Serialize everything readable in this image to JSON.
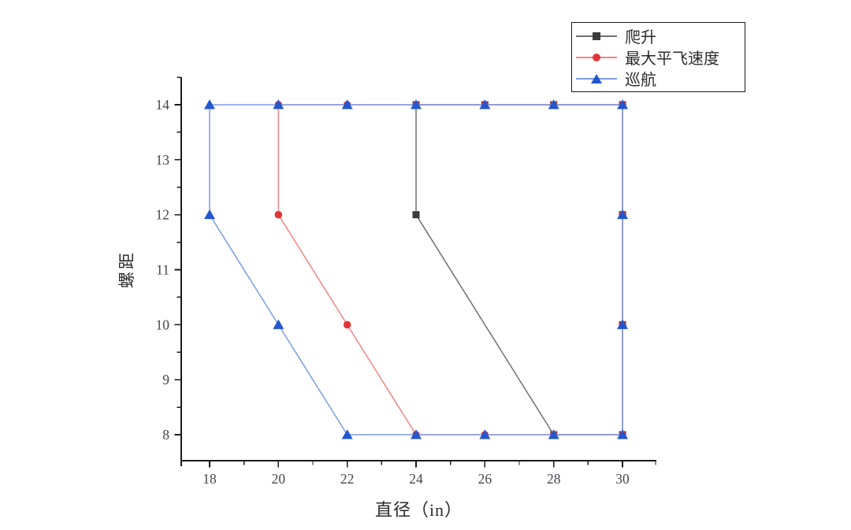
{
  "figure": {
    "background": "#ffffff",
    "axis_color": "#1a1a1a",
    "tick_label_color": "#44444e",
    "legend_border_color": "#1a1a1a"
  },
  "chart_data": {
    "type": "line",
    "title": "",
    "xlabel": "直径（in）",
    "ylabel": "螺距",
    "xticks": [
      18,
      20,
      22,
      24,
      26,
      28,
      30
    ],
    "xminor_ticks": [
      19,
      21,
      23,
      25,
      27,
      29,
      31
    ],
    "yticks": [
      8,
      9,
      10,
      11,
      12,
      13,
      14
    ],
    "yminor_ticks": [
      8.5,
      9.5,
      10.5,
      11.5,
      12.5,
      13.5,
      14.5
    ],
    "xlim": [
      17.2,
      31.0
    ],
    "ylim": [
      7.5,
      14.5
    ],
    "grid": false,
    "legend_position": "top-right",
    "series": [
      {
        "name": "爬升",
        "marker": "square",
        "color": "#3b3b3b",
        "line_color": "#707070",
        "points": [
          [
            24,
            14
          ],
          [
            26,
            14
          ],
          [
            28,
            14
          ],
          [
            30,
            14
          ],
          [
            30,
            12
          ],
          [
            30,
            10
          ],
          [
            30,
            8
          ],
          [
            28,
            8
          ],
          [
            24,
            12
          ],
          [
            24,
            14
          ]
        ]
      },
      {
        "name": "最大平飞速度",
        "marker": "circle",
        "color": "#e13638",
        "line_color": "#f08486",
        "points": [
          [
            20,
            14
          ],
          [
            22,
            14
          ],
          [
            24,
            14
          ],
          [
            26,
            14
          ],
          [
            28,
            14
          ],
          [
            30,
            14
          ],
          [
            30,
            12
          ],
          [
            30,
            10
          ],
          [
            30,
            8
          ],
          [
            28,
            8
          ],
          [
            26,
            8
          ],
          [
            24,
            8
          ],
          [
            22,
            10
          ],
          [
            20,
            12
          ],
          [
            20,
            14
          ]
        ]
      },
      {
        "name": "巡航",
        "marker": "triangle",
        "color": "#2457cd",
        "line_color": "#7d9ce6",
        "points": [
          [
            18,
            14
          ],
          [
            20,
            14
          ],
          [
            22,
            14
          ],
          [
            24,
            14
          ],
          [
            26,
            14
          ],
          [
            28,
            14
          ],
          [
            30,
            14
          ],
          [
            30,
            12
          ],
          [
            30,
            10
          ],
          [
            30,
            8
          ],
          [
            28,
            8
          ],
          [
            26,
            8
          ],
          [
            24,
            8
          ],
          [
            22,
            8
          ],
          [
            20,
            10
          ],
          [
            18,
            12
          ],
          [
            18,
            14
          ]
        ]
      }
    ]
  }
}
